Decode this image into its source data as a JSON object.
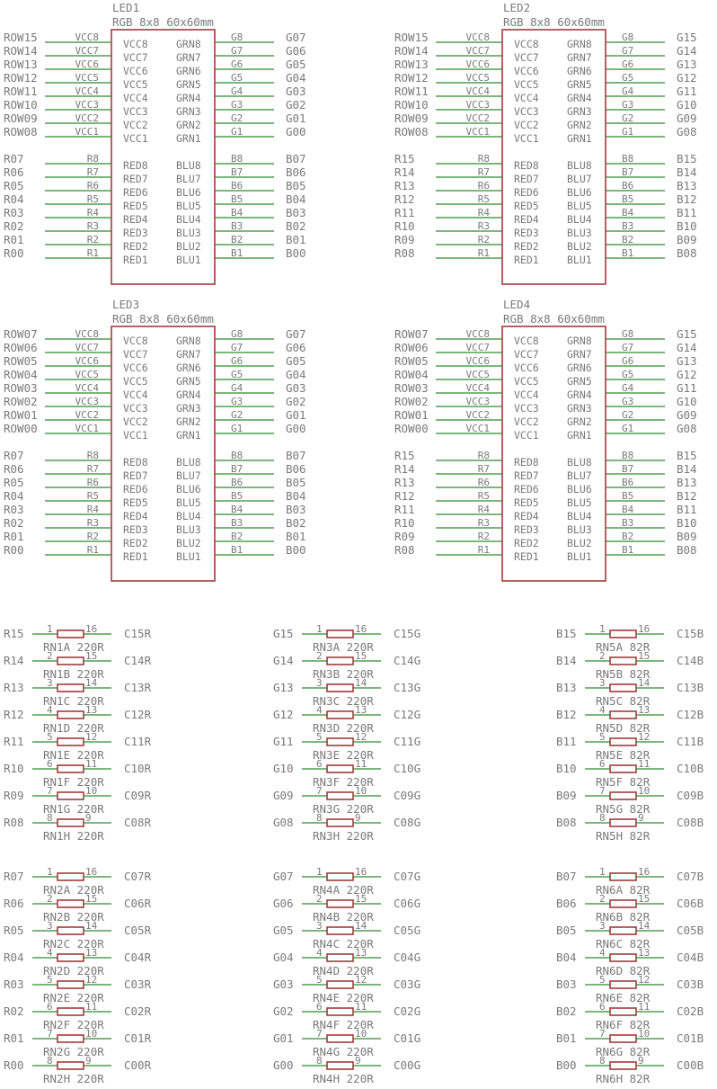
{
  "led_blocks": [
    {
      "ref": "LED1",
      "value": "RGB 8x8 60x60mm",
      "row_nets": [
        "ROW15",
        "ROW14",
        "ROW13",
        "ROW12",
        "ROW11",
        "ROW10",
        "ROW09",
        "ROW08"
      ],
      "red_nets": [
        "R07",
        "R06",
        "R05",
        "R04",
        "R03",
        "R02",
        "R01",
        "R00"
      ],
      "green_nets": [
        "G07",
        "G06",
        "G05",
        "G04",
        "G03",
        "G02",
        "G01",
        "G00"
      ],
      "blue_nets": [
        "B07",
        "B06",
        "B05",
        "B04",
        "B03",
        "B02",
        "B01",
        "B00"
      ]
    },
    {
      "ref": "LED2",
      "value": "RGB 8x8 60x60mm",
      "row_nets": [
        "ROW15",
        "ROW14",
        "ROW13",
        "ROW12",
        "ROW11",
        "ROW10",
        "ROW09",
        "ROW08"
      ],
      "red_nets": [
        "R15",
        "R14",
        "R13",
        "R12",
        "R11",
        "R10",
        "R09",
        "R08"
      ],
      "green_nets": [
        "G15",
        "G14",
        "G13",
        "G12",
        "G11",
        "G10",
        "G09",
        "G08"
      ],
      "blue_nets": [
        "B15",
        "B14",
        "B13",
        "B12",
        "B11",
        "B10",
        "B09",
        "B08"
      ]
    },
    {
      "ref": "LED3",
      "value": "RGB 8x8 60x60mm",
      "row_nets": [
        "ROW07",
        "ROW06",
        "ROW05",
        "ROW04",
        "ROW03",
        "ROW02",
        "ROW01",
        "ROW00"
      ],
      "red_nets": [
        "R07",
        "R06",
        "R05",
        "R04",
        "R03",
        "R02",
        "R01",
        "R00"
      ],
      "green_nets": [
        "G07",
        "G06",
        "G05",
        "G04",
        "G03",
        "G02",
        "G01",
        "G00"
      ],
      "blue_nets": [
        "B07",
        "B06",
        "B05",
        "B04",
        "B03",
        "B02",
        "B01",
        "B00"
      ]
    },
    {
      "ref": "LED4",
      "value": "RGB 8x8 60x60mm",
      "row_nets": [
        "ROW07",
        "ROW06",
        "ROW05",
        "ROW04",
        "ROW03",
        "ROW02",
        "ROW01",
        "ROW00"
      ],
      "red_nets": [
        "R15",
        "R14",
        "R13",
        "R12",
        "R11",
        "R10",
        "R09",
        "R08"
      ],
      "green_nets": [
        "G15",
        "G14",
        "G13",
        "G12",
        "G11",
        "G10",
        "G09",
        "G08"
      ],
      "blue_nets": [
        "B15",
        "B14",
        "B13",
        "B12",
        "B11",
        "B10",
        "B09",
        "B08"
      ]
    }
  ],
  "led_pins": {
    "left_top_pins": [
      "VCC8",
      "VCC7",
      "VCC6",
      "VCC5",
      "VCC4",
      "VCC3",
      "VCC2",
      "VCC1"
    ],
    "left_bottom_pins": [
      "R8",
      "R7",
      "R6",
      "R5",
      "R4",
      "R3",
      "R2",
      "R1"
    ],
    "right_top_pins": [
      "G8",
      "G7",
      "G6",
      "G5",
      "G4",
      "G3",
      "G2",
      "G1"
    ],
    "right_bottom_pins": [
      "B8",
      "B7",
      "B6",
      "B5",
      "B4",
      "B3",
      "B2",
      "B1"
    ],
    "inner_left_top": [
      "VCC8",
      "VCC7",
      "VCC6",
      "VCC5",
      "VCC4",
      "VCC3",
      "VCC2",
      "VCC1"
    ],
    "inner_left_bottom": [
      "RED8",
      "RED7",
      "RED6",
      "RED5",
      "RED4",
      "RED3",
      "RED2",
      "RED1"
    ],
    "inner_right_top": [
      "GRN8",
      "GRN7",
      "GRN6",
      "GRN5",
      "GRN4",
      "GRN3",
      "GRN2",
      "GRN1"
    ],
    "inner_right_bottom": [
      "BLU8",
      "BLU7",
      "BLU6",
      "BLU5",
      "BLU4",
      "BLU3",
      "BLU2",
      "BLU1"
    ]
  },
  "resistor_pin_pairs": [
    [
      "1",
      "16"
    ],
    [
      "2",
      "15"
    ],
    [
      "3",
      "14"
    ],
    [
      "4",
      "13"
    ],
    [
      "5",
      "12"
    ],
    [
      "6",
      "11"
    ],
    [
      "7",
      "10"
    ],
    [
      "8",
      "9"
    ]
  ],
  "resistor_networks": [
    {
      "name": "RN1",
      "value": "220R",
      "inputs": [
        "R15",
        "R14",
        "R13",
        "R12",
        "R11",
        "R10",
        "R09",
        "R08"
      ],
      "outputs": [
        "C15R",
        "C14R",
        "C13R",
        "C12R",
        "C11R",
        "C10R",
        "C09R",
        "C08R"
      ]
    },
    {
      "name": "RN3",
      "value": "220R",
      "inputs": [
        "G15",
        "G14",
        "G13",
        "G12",
        "G11",
        "G10",
        "G09",
        "G08"
      ],
      "outputs": [
        "C15G",
        "C14G",
        "C13G",
        "C12G",
        "C11G",
        "C10G",
        "C09G",
        "C08G"
      ]
    },
    {
      "name": "RN5",
      "value": "82R",
      "inputs": [
        "B15",
        "B14",
        "B13",
        "B12",
        "B11",
        "B10",
        "B09",
        "B08"
      ],
      "outputs": [
        "C15B",
        "C14B",
        "C13B",
        "C12B",
        "C11B",
        "C10B",
        "C09B",
        "C08B"
      ]
    },
    {
      "name": "RN2",
      "value": "220R",
      "inputs": [
        "R07",
        "R06",
        "R05",
        "R04",
        "R03",
        "R02",
        "R01",
        "R00"
      ],
      "outputs": [
        "C07R",
        "C06R",
        "C05R",
        "C04R",
        "C03R",
        "C02R",
        "C01R",
        "C00R"
      ]
    },
    {
      "name": "RN4",
      "value": "220R",
      "inputs": [
        "G07",
        "G06",
        "G05",
        "G04",
        "G03",
        "G02",
        "G01",
        "G00"
      ],
      "outputs": [
        "C07G",
        "C06G",
        "C05G",
        "C04G",
        "C03G",
        "C02G",
        "C01G",
        "C00G"
      ]
    },
    {
      "name": "RN6",
      "value": "82R",
      "inputs": [
        "B07",
        "B06",
        "B05",
        "B04",
        "B03",
        "B02",
        "B01",
        "B00"
      ],
      "outputs": [
        "C07B",
        "C06B",
        "C05B",
        "C04B",
        "C03B",
        "C02B",
        "C01B",
        "C00B"
      ]
    }
  ],
  "resistor_sections": [
    "A",
    "B",
    "C",
    "D",
    "E",
    "F",
    "G",
    "H"
  ],
  "colors": {
    "wire": "#2e8b2e",
    "body": "#a23b3b",
    "text": "#7a7a7a"
  }
}
